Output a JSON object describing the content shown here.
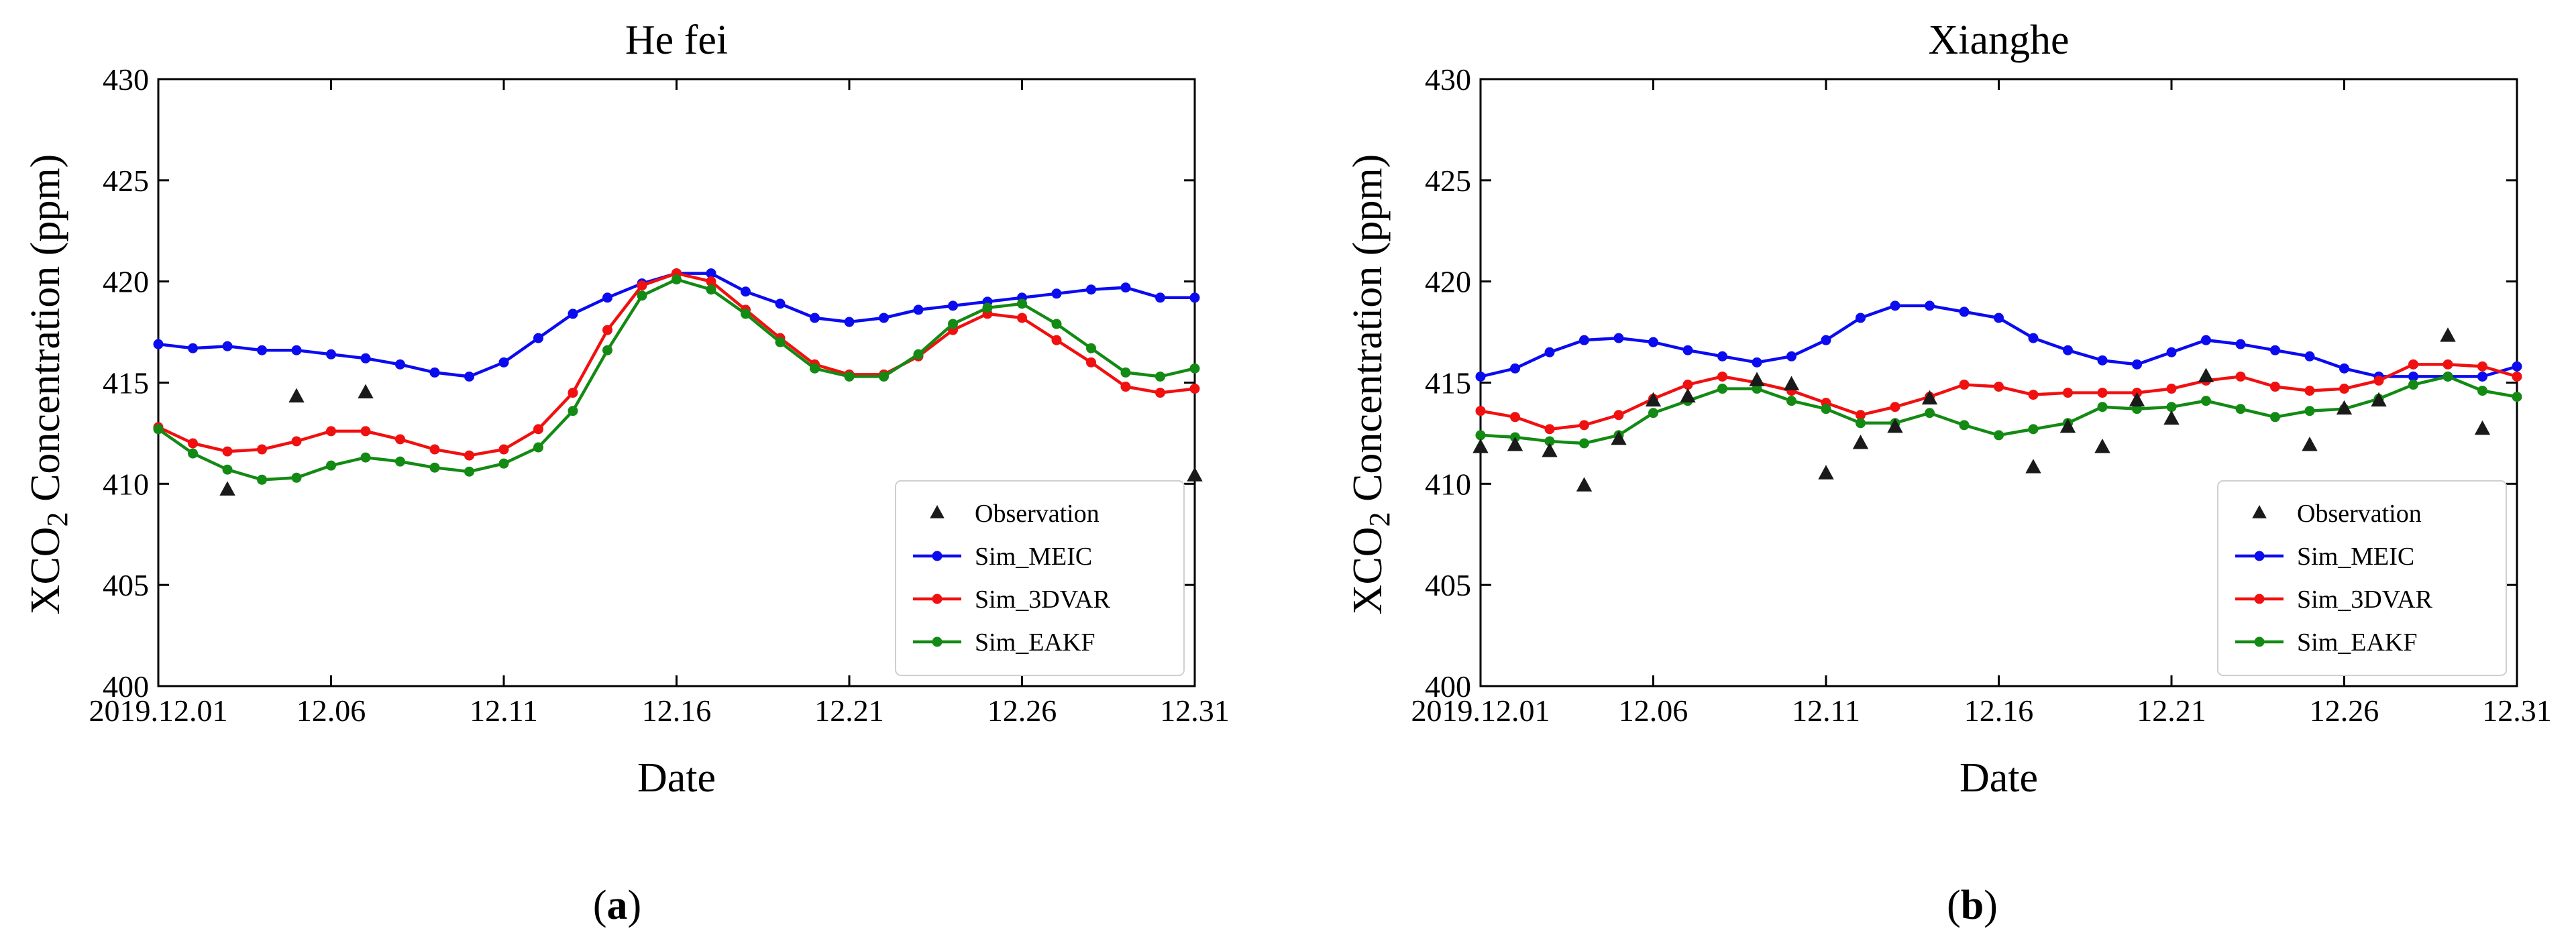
{
  "figure": {
    "panel_labels": [
      {
        "open": "(",
        "letter": "a",
        "close": ")"
      },
      {
        "open": "(",
        "letter": "b",
        "close": ")"
      }
    ]
  },
  "chart_data": [
    {
      "type": "line",
      "title": "He fei",
      "xlabel": "Date",
      "ylabel_prefix": "XCO",
      "ylabel_subscript": "2",
      "ylabel_suffix": " Concentration (ppm)",
      "xlim": [
        1,
        31
      ],
      "ylim": [
        400,
        430
      ],
      "yticks": [
        400,
        405,
        410,
        415,
        420,
        425,
        430
      ],
      "xticks": [
        {
          "x": 1,
          "label": "2019.12.01"
        },
        {
          "x": 6,
          "label": "12.06"
        },
        {
          "x": 11,
          "label": "12.11"
        },
        {
          "x": 16,
          "label": "12.16"
        },
        {
          "x": 21,
          "label": "12.21"
        },
        {
          "x": 26,
          "label": "12.26"
        },
        {
          "x": 31,
          "label": "12.31"
        }
      ],
      "legend_position": "lower-right",
      "observation": {
        "name": "Observation",
        "color": "#1a1a1a",
        "points": [
          {
            "x": 3,
            "y": 409.7
          },
          {
            "x": 5,
            "y": 414.3
          },
          {
            "x": 7,
            "y": 414.5
          },
          {
            "x": 31,
            "y": 410.4
          }
        ]
      },
      "series": [
        {
          "name": "Sim_MEIC",
          "color": "#0b0bf0",
          "x": [
            1,
            2,
            3,
            4,
            5,
            6,
            7,
            8,
            9,
            10,
            11,
            12,
            13,
            14,
            15,
            16,
            17,
            18,
            19,
            20,
            21,
            22,
            23,
            24,
            25,
            26,
            27,
            28,
            29,
            30,
            31
          ],
          "values": [
            416.9,
            416.7,
            416.8,
            416.6,
            416.6,
            416.4,
            416.2,
            415.9,
            415.5,
            415.3,
            416.0,
            417.2,
            418.4,
            419.2,
            419.9,
            420.4,
            420.4,
            419.5,
            418.9,
            418.2,
            418.0,
            418.2,
            418.6,
            418.8,
            419.0,
            419.2,
            419.4,
            419.6,
            419.7,
            419.2,
            419.2
          ]
        },
        {
          "name": "Sim_3DVAR",
          "color": "#f01010",
          "x": [
            1,
            2,
            3,
            4,
            5,
            6,
            7,
            8,
            9,
            10,
            11,
            12,
            13,
            14,
            15,
            16,
            17,
            18,
            19,
            20,
            21,
            22,
            23,
            24,
            25,
            26,
            27,
            28,
            29,
            30,
            31
          ],
          "values": [
            412.8,
            412.0,
            411.6,
            411.7,
            412.1,
            412.6,
            412.6,
            412.2,
            411.7,
            411.4,
            411.7,
            412.7,
            414.5,
            417.6,
            419.8,
            420.4,
            420.0,
            418.6,
            417.2,
            415.9,
            415.4,
            415.4,
            416.3,
            417.6,
            418.4,
            418.2,
            417.1,
            416.0,
            414.8,
            414.5,
            414.7
          ]
        },
        {
          "name": "Sim_EAKF",
          "color": "#138a13",
          "x": [
            1,
            2,
            3,
            4,
            5,
            6,
            7,
            8,
            9,
            10,
            11,
            12,
            13,
            14,
            15,
            16,
            17,
            18,
            19,
            20,
            21,
            22,
            23,
            24,
            25,
            26,
            27,
            28,
            29,
            30,
            31
          ],
          "values": [
            412.7,
            411.5,
            410.7,
            410.2,
            410.3,
            410.9,
            411.3,
            411.1,
            410.8,
            410.6,
            411.0,
            411.8,
            413.6,
            416.6,
            419.3,
            420.1,
            419.6,
            418.4,
            417.0,
            415.7,
            415.3,
            415.3,
            416.4,
            417.9,
            418.7,
            418.9,
            417.9,
            416.7,
            415.5,
            415.3,
            415.7
          ]
        }
      ]
    },
    {
      "type": "line",
      "title": "Xianghe",
      "xlabel": "Date",
      "ylabel_prefix": "XCO",
      "ylabel_subscript": "2",
      "ylabel_suffix": " Concentration (ppm)",
      "xlim": [
        1,
        31
      ],
      "ylim": [
        400,
        430
      ],
      "yticks": [
        400,
        405,
        410,
        415,
        420,
        425,
        430
      ],
      "xticks": [
        {
          "x": 1,
          "label": "2019.12.01"
        },
        {
          "x": 6,
          "label": "12.06"
        },
        {
          "x": 11,
          "label": "12.11"
        },
        {
          "x": 16,
          "label": "12.16"
        },
        {
          "x": 21,
          "label": "12.21"
        },
        {
          "x": 26,
          "label": "12.26"
        },
        {
          "x": 31,
          "label": "12.31"
        }
      ],
      "legend_position": "lower-right",
      "observation": {
        "name": "Observation",
        "color": "#1a1a1a",
        "points": [
          {
            "x": 1,
            "y": 411.8
          },
          {
            "x": 2,
            "y": 411.9
          },
          {
            "x": 3,
            "y": 411.6
          },
          {
            "x": 4,
            "y": 409.9
          },
          {
            "x": 5,
            "y": 412.2
          },
          {
            "x": 6,
            "y": 414.1
          },
          {
            "x": 7,
            "y": 414.3
          },
          {
            "x": 9,
            "y": 415.1
          },
          {
            "x": 10,
            "y": 414.9
          },
          {
            "x": 11,
            "y": 410.5
          },
          {
            "x": 12,
            "y": 412.0
          },
          {
            "x": 13,
            "y": 412.8
          },
          {
            "x": 14,
            "y": 414.2
          },
          {
            "x": 17,
            "y": 410.8
          },
          {
            "x": 18,
            "y": 412.8
          },
          {
            "x": 19,
            "y": 411.8
          },
          {
            "x": 20,
            "y": 414.1
          },
          {
            "x": 21,
            "y": 413.2
          },
          {
            "x": 22,
            "y": 415.3
          },
          {
            "x": 25,
            "y": 411.9
          },
          {
            "x": 26,
            "y": 413.7
          },
          {
            "x": 27,
            "y": 414.1
          },
          {
            "x": 29,
            "y": 417.3
          },
          {
            "x": 30,
            "y": 412.7
          }
        ]
      },
      "series": [
        {
          "name": "Sim_MEIC",
          "color": "#0b0bf0",
          "x": [
            1,
            2,
            3,
            4,
            5,
            6,
            7,
            8,
            9,
            10,
            11,
            12,
            13,
            14,
            15,
            16,
            17,
            18,
            19,
            20,
            21,
            22,
            23,
            24,
            25,
            26,
            27,
            28,
            29,
            30,
            31
          ],
          "values": [
            415.3,
            415.7,
            416.5,
            417.1,
            417.2,
            417.0,
            416.6,
            416.3,
            416.0,
            416.3,
            417.1,
            418.2,
            418.8,
            418.8,
            418.5,
            418.2,
            417.2,
            416.6,
            416.1,
            415.9,
            416.5,
            417.1,
            416.9,
            416.6,
            416.3,
            415.7,
            415.3,
            415.3,
            415.3,
            415.3,
            415.8
          ]
        },
        {
          "name": "Sim_3DVAR",
          "color": "#f01010",
          "x": [
            1,
            2,
            3,
            4,
            5,
            6,
            7,
            8,
            9,
            10,
            11,
            12,
            13,
            14,
            15,
            16,
            17,
            18,
            19,
            20,
            21,
            22,
            23,
            24,
            25,
            26,
            27,
            28,
            29,
            30,
            31
          ],
          "values": [
            413.6,
            413.3,
            412.7,
            412.9,
            413.4,
            414.2,
            414.9,
            415.3,
            415.0,
            414.6,
            414.0,
            413.4,
            413.8,
            414.3,
            414.9,
            414.8,
            414.4,
            414.5,
            414.5,
            414.5,
            414.7,
            415.1,
            415.3,
            414.8,
            414.6,
            414.7,
            415.1,
            415.9,
            415.9,
            415.8,
            415.3
          ]
        },
        {
          "name": "Sim_EAKF",
          "color": "#138a13",
          "x": [
            1,
            2,
            3,
            4,
            5,
            6,
            7,
            8,
            9,
            10,
            11,
            12,
            13,
            14,
            15,
            16,
            17,
            18,
            19,
            20,
            21,
            22,
            23,
            24,
            25,
            26,
            27,
            28,
            29,
            30,
            31
          ],
          "values": [
            412.4,
            412.3,
            412.1,
            412.0,
            412.4,
            413.5,
            414.1,
            414.7,
            414.7,
            414.1,
            413.7,
            413.0,
            413.0,
            413.5,
            412.9,
            412.4,
            412.7,
            413.0,
            413.8,
            413.7,
            413.8,
            414.1,
            413.7,
            413.3,
            413.6,
            413.7,
            414.2,
            414.9,
            415.3,
            414.6,
            414.3
          ]
        }
      ]
    }
  ]
}
